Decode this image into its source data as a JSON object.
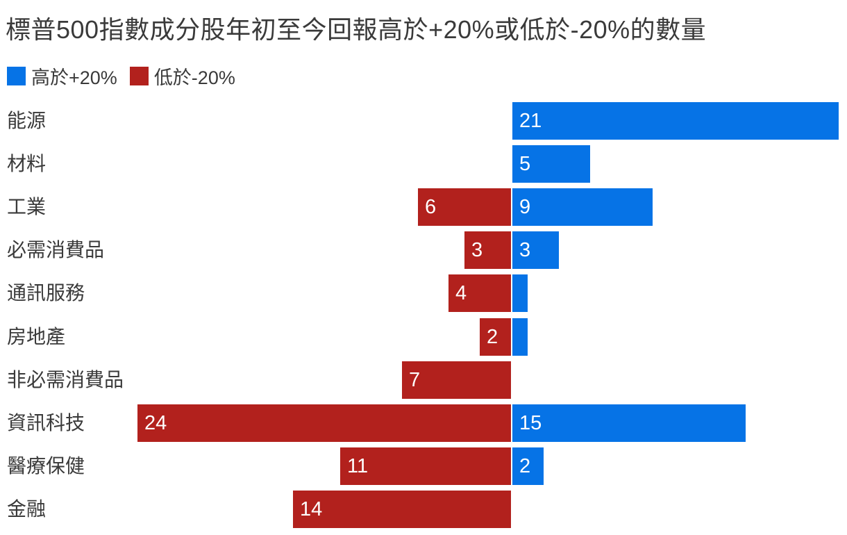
{
  "chart_data": {
    "type": "bar",
    "orientation": "horizontal-diverging",
    "title": "標普500指數成分股年初至今回報高於+20%或低於-20%的數量",
    "legend_position": "top-left",
    "grid": false,
    "value_labels": "inside-start",
    "categories": [
      "能源",
      "材料",
      "工業",
      "必需消費品",
      "通訊服務",
      "房地產",
      "非必需消費品",
      "資訊科技",
      "醫療保健",
      "金融"
    ],
    "series": [
      {
        "name": "高於+20%",
        "color": "#0673E6",
        "direction": "right",
        "values": [
          21,
          5,
          9,
          3,
          1,
          1,
          null,
          15,
          2,
          null
        ]
      },
      {
        "name": "低於-20%",
        "color": "#B2211D",
        "direction": "left",
        "values": [
          null,
          null,
          6,
          3,
          4,
          2,
          7,
          24,
          11,
          14
        ]
      }
    ],
    "xlim_units": [
      -24,
      21
    ],
    "unlabeled_small_bars": "bars of width 1 unit show no number"
  },
  "colors": {
    "background": "#FFFFFF",
    "text": "#3A3A3A",
    "bar_value_text": "#FFFFFF",
    "above_blue": "#0673E6",
    "below_red": "#B2211D"
  }
}
